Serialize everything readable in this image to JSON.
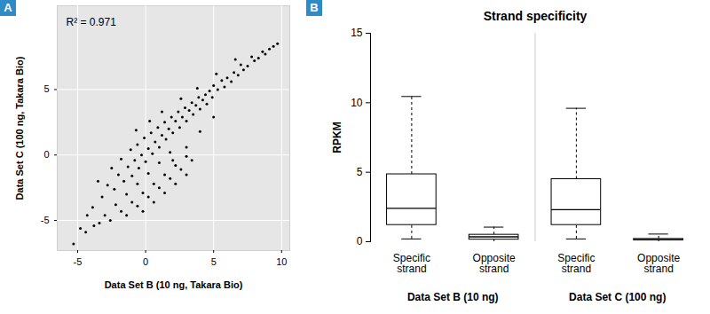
{
  "chart_data": [
    {
      "type": "scatter",
      "panel_label": "A",
      "annotation": "R² = 0.971",
      "xlabel": "Data Set B (10 ng, Takara Bio)",
      "ylabel": "Data Set C (100 ng, Takara Bio)",
      "color": "#000000",
      "grid": true,
      "xlim": [
        -6.5,
        10.6
      ],
      "xticks": [
        -5,
        0,
        5,
        10
      ],
      "ylim": [
        -7.3,
        11.4
      ],
      "yticks": [
        -5,
        0,
        5
      ],
      "x": [
        9.7,
        9.4,
        9.1,
        8.8,
        8.6,
        8.3,
        8.0,
        7.8,
        7.5,
        7.2,
        7.0,
        6.8,
        6.5,
        6.3,
        6.0,
        5.8,
        5.6,
        5.3,
        5.0,
        4.9,
        4.7,
        4.5,
        4.4,
        4.2,
        4.0,
        3.9,
        3.7,
        3.5,
        3.4,
        3.2,
        3.0,
        2.9,
        2.7,
        2.5,
        2.4,
        2.2,
        2.0,
        1.9,
        1.7,
        1.5,
        1.4,
        1.2,
        1.0,
        0.9,
        0.7,
        0.5,
        0.4,
        0.2,
        0.0,
        -0.1,
        -0.3,
        -0.5,
        -0.6,
        -0.8,
        -1.0,
        -1.1,
        -1.3,
        -1.6,
        -1.8,
        -2.0,
        -2.3,
        -2.5,
        -2.8,
        -3.2,
        -3.5,
        -3.9,
        -4.3,
        -4.8,
        -5.3,
        1.2,
        0.3,
        -0.7,
        2.6,
        3.8,
        5.2,
        6.6,
        2.0,
        3.0,
        4.0,
        5.0,
        -3.8,
        -3.0,
        -2.2,
        -1.4,
        -0.6,
        0.2,
        1.0,
        1.8,
        -2.6,
        -1.8,
        -1.0,
        -0.2,
        0.6,
        1.4,
        2.2,
        3.0,
        -1.4,
        -0.6,
        0.2,
        1.0,
        1.8,
        2.6,
        3.4,
        -0.2,
        0.6,
        1.4,
        2.2,
        3.0,
        -4.4,
        -3.4
      ],
      "values": [
        8.5,
        8.3,
        8.1,
        7.7,
        7.9,
        7.4,
        7.2,
        7.5,
        6.8,
        6.5,
        6.9,
        6.1,
        6.3,
        5.6,
        5.9,
        5.2,
        5.7,
        5.0,
        5.3,
        4.4,
        4.9,
        3.9,
        4.6,
        4.2,
        3.5,
        4.4,
        3.8,
        3.1,
        4.0,
        3.4,
        2.6,
        3.6,
        2.9,
        2.1,
        3.3,
        2.6,
        1.7,
        2.9,
        2.0,
        1.2,
        2.5,
        1.5,
        0.6,
        2.1,
        1.0,
        0.1,
        1.7,
        0.5,
        -0.5,
        1.3,
        0.0,
        -1.0,
        0.8,
        -0.4,
        -1.6,
        0.4,
        -0.9,
        -2.0,
        -0.3,
        -1.5,
        -2.6,
        -1.0,
        -2.3,
        -3.2,
        -2.0,
        -4.0,
        -4.6,
        -5.6,
        -6.8,
        3.3,
        2.6,
        1.9,
        4.3,
        5.1,
        6.2,
        7.3,
        -0.4,
        0.6,
        1.8,
        2.9,
        -5.4,
        -4.6,
        -3.8,
        -3.0,
        -2.2,
        -1.4,
        -0.6,
        0.2,
        -5.0,
        -4.3,
        -3.6,
        -2.9,
        -2.2,
        -1.5,
        -0.8,
        -0.1,
        -4.6,
        -3.9,
        -3.2,
        -2.5,
        -1.8,
        -1.1,
        -0.4,
        -4.3,
        -3.6,
        -2.9,
        -2.2,
        -1.5,
        -5.9,
        -5.2
      ]
    },
    {
      "type": "box",
      "panel_label": "B",
      "title": "Strand specificity",
      "ylabel": "RPKM",
      "categories": [
        "Specific strand",
        "Opposite strand",
        "Specific strand",
        "Opposite strand"
      ],
      "groups": [
        "Data Set B (10 ng)",
        "Data Set C (100 ng)"
      ],
      "min": [
        0.2,
        0.0,
        0.2,
        0.0
      ],
      "q1": [
        1.2,
        0.15,
        1.2,
        0.1
      ],
      "median": [
        2.4,
        0.35,
        2.3,
        0.15
      ],
      "q3": [
        4.85,
        0.5,
        4.5,
        0.2
      ],
      "max": [
        10.45,
        1.05,
        9.6,
        0.55
      ],
      "ylim": [
        0,
        15
      ],
      "yticks": [
        0,
        5,
        10,
        15
      ]
    }
  ]
}
